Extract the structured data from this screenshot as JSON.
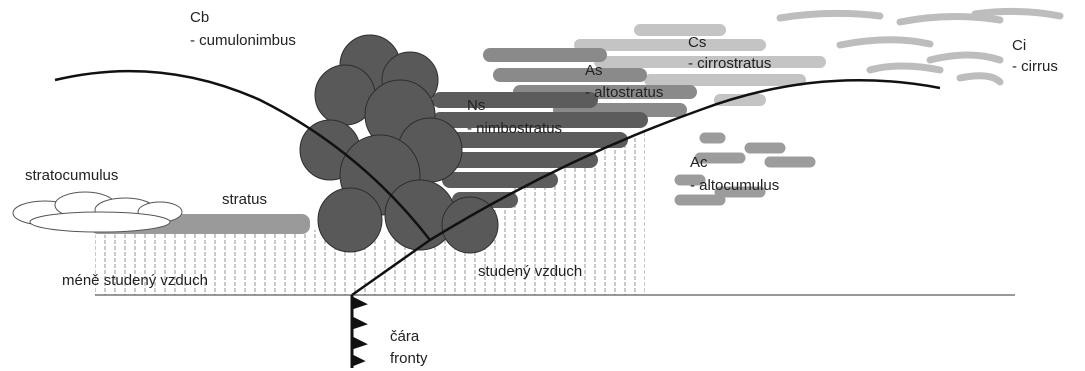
{
  "clouds": [
    {
      "abbr": "Cb",
      "name": "- cumulonimbus"
    },
    {
      "abbr": "Cs",
      "name": "- cirrostratus"
    },
    {
      "abbr": "Ci",
      "name": "- cirrus"
    },
    {
      "abbr": "As",
      "name": "- altostratus"
    },
    {
      "abbr": "Ns",
      "name": "- nimbostratus"
    },
    {
      "abbr": "Ac",
      "name": "- altocumulus"
    }
  ],
  "stratocumulus": "stratocumulus",
  "stratus": "stratus",
  "air_masses": [
    "méně studený vzduch",
    "studený vzduch"
  ],
  "front_line": [
    "čára",
    "fronty"
  ]
}
